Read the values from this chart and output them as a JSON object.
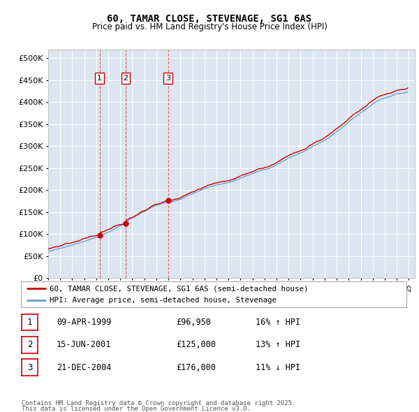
{
  "title": "60, TAMAR CLOSE, STEVENAGE, SG1 6AS",
  "subtitle": "Price paid vs. HM Land Registry's House Price Index (HPI)",
  "legend_line1": "60, TAMAR CLOSE, STEVENAGE, SG1 6AS (semi-detached house)",
  "legend_line2": "HPI: Average price, semi-detached house, Stevenage",
  "footer1": "Contains HM Land Registry data © Crown copyright and database right 2025.",
  "footer2": "This data is licensed under the Open Government Licence v3.0.",
  "transactions": [
    {
      "num": 1,
      "date": "09-APR-1999",
      "price": "£96,950",
      "hpi": "16% ↑ HPI",
      "year": 1999.27
    },
    {
      "num": 2,
      "date": "15-JUN-2001",
      "price": "£125,000",
      "hpi": "13% ↑ HPI",
      "year": 2001.45
    },
    {
      "num": 3,
      "date": "21-DEC-2004",
      "price": "£176,000",
      "hpi": "11% ↓ HPI",
      "year": 2004.97
    }
  ],
  "transaction_prices": [
    96950,
    125000,
    176000
  ],
  "price_color": "#cc0000",
  "hpi_color": "#6699cc",
  "plot_bg_color": "#dce6f1",
  "ylim": [
    0,
    520000
  ],
  "yticks": [
    0,
    50000,
    100000,
    150000,
    200000,
    250000,
    300000,
    350000,
    400000,
    450000,
    500000
  ],
  "xlim_start": 1995.0,
  "xlim_end": 2025.5,
  "hpi_monthly": [
    60500,
    61000,
    61500,
    62000,
    62800,
    63500,
    64200,
    64800,
    65300,
    65800,
    66200,
    66700,
    67200,
    67800,
    68500,
    69200,
    70000,
    70800,
    71500,
    72200,
    72900,
    73500,
    74100,
    74600,
    75200,
    75900,
    76600,
    77400,
    78200,
    79000,
    79800,
    80500,
    81200,
    81800,
    82500,
    83100,
    83800,
    84600,
    85500,
    86400,
    87300,
    88200,
    89100,
    89900,
    90600,
    91200,
    91700,
    92100,
    92600,
    93200,
    94000,
    95000,
    96100,
    97300,
    98500,
    99700,
    100900,
    102000,
    103000,
    103900,
    104800,
    105700,
    106700,
    107800,
    109000,
    110300,
    111700,
    113100,
    114500,
    115800,
    117000,
    118100,
    119200,
    120400,
    121700,
    123100,
    124700,
    126400,
    128200,
    130000,
    131700,
    133300,
    134800,
    136100,
    137300,
    138500,
    139700,
    141000,
    142300,
    143700,
    145100,
    146500,
    147800,
    149000,
    150100,
    151100,
    152100,
    153200,
    154400,
    155800,
    157200,
    158600,
    160000,
    161300,
    162500,
    163600,
    164600,
    165500,
    166300,
    167100,
    167900,
    168700,
    169500,
    170200,
    170900,
    171500,
    172000,
    172400,
    172700,
    173000,
    173200,
    173400,
    173600,
    173900,
    174300,
    174800,
    175300,
    175900,
    176600,
    177400,
    178200,
    179100,
    180100,
    181200,
    182300,
    183500,
    184700,
    185900,
    187100,
    188200,
    189200,
    190100,
    190900,
    191600,
    192300,
    193100,
    194000,
    195000,
    196100,
    197200,
    198300,
    199300,
    200200,
    201100,
    202000,
    202900,
    203800,
    204700,
    205600,
    206400,
    207200,
    208000,
    208700,
    209400,
    210000,
    210600,
    211200,
    211700,
    212200,
    212700,
    213200,
    213700,
    214200,
    214700,
    215100,
    215500,
    215900,
    216300,
    216700,
    217200,
    217700,
    218200,
    218800,
    219400,
    220100,
    220900,
    221700,
    222600,
    223500,
    224500,
    225500,
    226600,
    227700,
    228800,
    229800,
    230700,
    231500,
    232300,
    233100,
    233900,
    234700,
    235500,
    236300,
    237200,
    238100,
    239000,
    239900,
    240800,
    241700,
    242500,
    243300,
    244000,
    244600,
    245200,
    245700,
    246200,
    246700,
    247200,
    247700,
    248300,
    249000,
    249800,
    250700,
    251700,
    252800,
    254000,
    255300,
    256600,
    258000,
    259400,
    260700,
    262000,
    263200,
    264400,
    265600,
    266800,
    268000,
    269200,
    270400,
    271600,
    272800,
    274000,
    275100,
    276200,
    277200,
    278200,
    279100,
    280000,
    280900,
    281800,
    282700,
    283600,
    284500,
    285500,
    286500,
    287600,
    288700,
    289900,
    291200,
    292600,
    294000,
    295500,
    296900,
    298300,
    299600,
    300900,
    302100,
    303300,
    304400,
    305500,
    306600,
    307700,
    308800,
    309900,
    311000,
    312200,
    313400,
    314700,
    316100,
    317600,
    319200,
    320900,
    322700,
    324500,
    326300,
    328100,
    329800,
    331400,
    333000,
    334500,
    336100,
    337700,
    339400,
    341200,
    343100,
    345100,
    347200,
    349300,
    351400,
    353400,
    355400,
    357300,
    359100,
    360900,
    362700,
    364400,
    366100,
    367800,
    369400,
    371000,
    372500,
    374000,
    375500,
    377000,
    378500,
    380100,
    381700,
    383400,
    385100,
    386900,
    388700,
    390500,
    392200,
    393900,
    395500,
    397100,
    398700,
    400200,
    401600,
    402900,
    404100,
    405200,
    406200,
    407100,
    407900,
    408600,
    409200,
    409800,
    410300,
    410900,
    411600,
    412400,
    413300,
    414300,
    415400,
    416400,
    417300,
    418100,
    418700,
    419200,
    419600,
    419900,
    420200,
    420500,
    420700,
    421000,
    421400,
    421900,
    422600,
    423500,
    424500,
    425600,
    426700,
    427800,
    428900,
    429900,
    430800,
    431500,
    432000,
    432300,
    432400,
    432300
  ],
  "prop_monthly": [
    71000,
    71500,
    72000,
    72500,
    73100,
    73800,
    74500,
    75100,
    75700,
    76200,
    76600,
    77100,
    77600,
    78200,
    78900,
    79600,
    80400,
    81200,
    81900,
    82600,
    83300,
    83900,
    84500,
    85000,
    85500,
    86100,
    86800,
    87600,
    88500,
    89400,
    90300,
    91000,
    91700,
    92300,
    93000,
    93600,
    94300,
    95100,
    96000,
    97000,
    98000,
    98950,
    99000,
    99500,
    100000,
    100400,
    100700,
    101000,
    101200,
    101500,
    101900,
    102400,
    103000,
    103800,
    104700,
    105800,
    107000,
    108200,
    109300,
    110300,
    111200,
    112100,
    113100,
    114200,
    115400,
    116800,
    118300,
    119800,
    121200,
    122500,
    123600,
    124500,
    125000,
    125500,
    126100,
    126900,
    127900,
    129100,
    130600,
    132100,
    133600,
    134900,
    136100,
    137100,
    138000,
    139000,
    140100,
    141400,
    142900,
    144500,
    146300,
    148000,
    149600,
    151000,
    152100,
    153000,
    153800,
    154700,
    155700,
    157000,
    158500,
    160100,
    161900,
    163600,
    165200,
    166600,
    167800,
    168800,
    169600,
    170400,
    171300,
    172200,
    173100,
    174000,
    174900,
    175700,
    176500,
    177200,
    177800,
    178200,
    178500,
    178700,
    178900,
    179200,
    179600,
    180100,
    180700,
    181300,
    182000,
    182800,
    183700,
    184700,
    185800,
    187000,
    188300,
    189700,
    191100,
    192400,
    193600,
    194700,
    195600,
    196400,
    197100,
    197700,
    198300,
    199000,
    199900,
    200900,
    202000,
    203100,
    204200,
    205200,
    206000,
    206800,
    207500,
    208200,
    208800,
    209500,
    210100,
    210700,
    211300,
    211900,
    212400,
    212900,
    213300,
    213700,
    214100,
    214500,
    214800,
    215100,
    215400,
    215700,
    216000,
    216400,
    216700,
    217100,
    217400,
    217700,
    218000,
    218300,
    218600,
    219000,
    219400,
    219900,
    220500,
    221100,
    221900,
    222700,
    223600,
    224600,
    225700,
    226900,
    228100,
    229300,
    230400,
    231500,
    232500,
    233400,
    234300,
    235100,
    235900,
    236700,
    237500,
    238300,
    239100,
    240000,
    240900,
    241800,
    242700,
    243600,
    244400,
    245200,
    246000,
    246700,
    247400,
    248000,
    248600,
    249200,
    249900,
    250700,
    251600,
    252600,
    253800,
    255100,
    256500,
    258000,
    259600,
    261200,
    262800,
    264300,
    265700,
    267000,
    268300,
    269500,
    270700,
    271900,
    273100,
    274300,
    275500,
    276700,
    277900,
    279100,
    280300,
    281400,
    282500,
    283500,
    284500,
    285500,
    286500,
    287500,
    288500,
    289500,
    290500,
    291500,
    292600,
    293700,
    294900,
    296200,
    297600,
    299100,
    300700,
    302300,
    303900,
    305500,
    307000,
    308400,
    309700,
    311000,
    312200,
    313400,
    314600,
    315800,
    317000,
    318200,
    319400,
    320700,
    322000,
    323400,
    324900,
    326500,
    328200,
    330000,
    331900,
    333800,
    335800,
    337800,
    339700,
    341600,
    343400,
    345200,
    346900,
    348600,
    350300,
    352100,
    353900,
    355800,
    357700,
    359600,
    361500,
    363300,
    365000,
    366700,
    368300,
    369900,
    371400,
    372900,
    374400,
    375900,
    377300,
    378700,
    380100,
    381400,
    382700,
    384000,
    385300,
    386500,
    387700,
    388800,
    389800,
    390700,
    391500,
    392200,
    392700,
    393100,
    393300,
    393400,
    393400,
    393300,
    393100,
    392900,
    392600,
    392300,
    392000,
    391700,
    391400,
    391100,
    390800,
    390600,
    390500,
    390500,
    390600,
    390800,
    391100,
    391500,
    392000,
    392500,
    393100,
    393700,
    394300,
    394900,
    395400,
    395900,
    396300,
    396700,
    397000,
    397200,
    397400,
    397500,
    397500,
    397400,
    397300,
    397100,
    396900,
    396700,
    396500,
    396300,
    396100,
    395900,
    395800,
    395700,
    395600,
    395600
  ]
}
